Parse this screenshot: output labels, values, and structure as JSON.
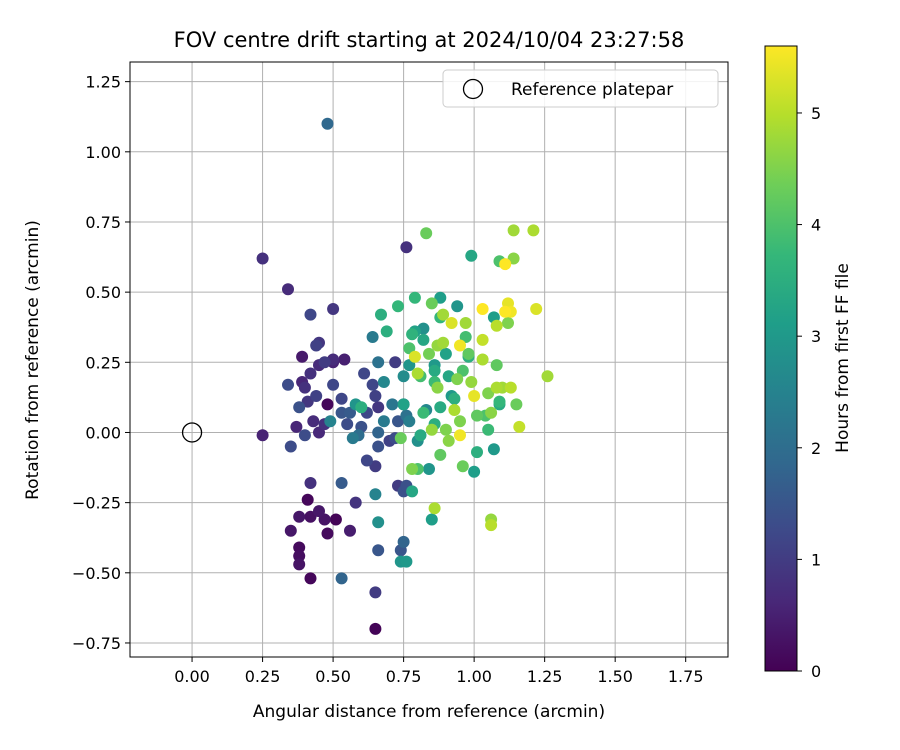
{
  "chart_data": {
    "type": "scatter",
    "title": "FOV centre drift starting at 2024/10/04 23:27:58",
    "xlabel": "Angular distance from reference (arcmin)",
    "ylabel": "Rotation from reference (arcmin)",
    "xlim": [
      -0.22,
      1.9
    ],
    "ylim": [
      -0.8,
      1.32
    ],
    "x_ticks": [
      0.0,
      0.25,
      0.5,
      0.75,
      1.0,
      1.25,
      1.5,
      1.75
    ],
    "y_ticks": [
      -0.75,
      -0.5,
      -0.25,
      0.0,
      0.25,
      0.5,
      0.75,
      1.0,
      1.25
    ],
    "grid": true,
    "legend": {
      "position": "top-right",
      "entries": [
        "Reference platepar"
      ]
    },
    "reference_point": {
      "x": 0.0,
      "y": 0.0,
      "label": "Reference platepar"
    },
    "colorbar": {
      "label": "Hours from first FF file",
      "colormap": "viridis",
      "range": [
        0,
        5.6
      ],
      "ticks": [
        0,
        1,
        2,
        3,
        4,
        5
      ]
    },
    "colormap_stops": [
      "#440154",
      "#482878",
      "#3e4989",
      "#31688e",
      "#26828e",
      "#1f9e89",
      "#35b779",
      "#6ece58",
      "#b5de2b",
      "#fde725"
    ],
    "points": [
      {
        "x": 0.65,
        "y": -0.7,
        "c": 0.05
      },
      {
        "x": 0.42,
        "y": -0.52,
        "c": 0.1
      },
      {
        "x": 0.38,
        "y": -0.47,
        "c": 0.3
      },
      {
        "x": 0.38,
        "y": -0.41,
        "c": 0.15
      },
      {
        "x": 0.38,
        "y": -0.44,
        "c": 0.2
      },
      {
        "x": 0.35,
        "y": -0.35,
        "c": 0.35
      },
      {
        "x": 0.38,
        "y": -0.3,
        "c": 0.35
      },
      {
        "x": 0.42,
        "y": -0.3,
        "c": 0.25
      },
      {
        "x": 0.41,
        "y": -0.24,
        "c": 0.1
      },
      {
        "x": 0.45,
        "y": -0.28,
        "c": 0.35
      },
      {
        "x": 0.47,
        "y": -0.31,
        "c": 0.3
      },
      {
        "x": 0.48,
        "y": -0.36,
        "c": 0.15
      },
      {
        "x": 0.51,
        "y": -0.31,
        "c": 0.05
      },
      {
        "x": 0.56,
        "y": -0.35,
        "c": 0.45
      },
      {
        "x": 0.42,
        "y": -0.18,
        "c": 0.8
      },
      {
        "x": 0.53,
        "y": -0.18,
        "c": 1.6
      },
      {
        "x": 0.53,
        "y": -0.52,
        "c": 1.8
      },
      {
        "x": 0.65,
        "y": -0.57,
        "c": 1.0
      },
      {
        "x": 0.58,
        "y": -0.25,
        "c": 0.85
      },
      {
        "x": 0.66,
        "y": -0.42,
        "c": 1.5
      },
      {
        "x": 0.25,
        "y": -0.01,
        "c": 0.55
      },
      {
        "x": 0.35,
        "y": -0.05,
        "c": 1.3
      },
      {
        "x": 0.37,
        "y": 0.02,
        "c": 0.6
      },
      {
        "x": 0.4,
        "y": -0.01,
        "c": 1.3
      },
      {
        "x": 0.43,
        "y": 0.04,
        "c": 0.7
      },
      {
        "x": 0.45,
        "y": 0.0,
        "c": 0.65
      },
      {
        "x": 0.47,
        "y": 0.03,
        "c": 0.8
      },
      {
        "x": 0.48,
        "y": 0.1,
        "c": 0.1
      },
      {
        "x": 0.38,
        "y": 0.09,
        "c": 1.4
      },
      {
        "x": 0.41,
        "y": 0.11,
        "c": 0.9
      },
      {
        "x": 0.44,
        "y": 0.13,
        "c": 1.1
      },
      {
        "x": 0.4,
        "y": 0.16,
        "c": 0.8
      },
      {
        "x": 0.39,
        "y": 0.18,
        "c": 0.6
      },
      {
        "x": 0.34,
        "y": 0.17,
        "c": 1.3
      },
      {
        "x": 0.42,
        "y": 0.21,
        "c": 0.8
      },
      {
        "x": 0.45,
        "y": 0.24,
        "c": 0.7
      },
      {
        "x": 0.39,
        "y": 0.27,
        "c": 0.4
      },
      {
        "x": 0.5,
        "y": 0.25,
        "c": 0.55
      },
      {
        "x": 0.5,
        "y": 0.17,
        "c": 1.2
      },
      {
        "x": 0.44,
        "y": 0.31,
        "c": 1.1
      },
      {
        "x": 0.45,
        "y": 0.32,
        "c": 0.9
      },
      {
        "x": 0.47,
        "y": 0.25,
        "c": 1.0
      },
      {
        "x": 0.5,
        "y": 0.26,
        "c": 0.7
      },
      {
        "x": 0.54,
        "y": 0.26,
        "c": 0.5
      },
      {
        "x": 0.42,
        "y": 0.42,
        "c": 1.2
      },
      {
        "x": 0.34,
        "y": 0.51,
        "c": 0.7
      },
      {
        "x": 0.25,
        "y": 0.62,
        "c": 0.8
      },
      {
        "x": 0.5,
        "y": 0.44,
        "c": 0.9
      },
      {
        "x": 0.48,
        "y": 1.1,
        "c": 1.9
      },
      {
        "x": 0.76,
        "y": 0.66,
        "c": 0.8
      },
      {
        "x": 0.49,
        "y": 0.04,
        "c": 2.5
      },
      {
        "x": 0.53,
        "y": 0.07,
        "c": 1.5
      },
      {
        "x": 0.55,
        "y": 0.03,
        "c": 1.3
      },
      {
        "x": 0.56,
        "y": 0.07,
        "c": 1.6
      },
      {
        "x": 0.53,
        "y": 0.12,
        "c": 1.2
      },
      {
        "x": 0.58,
        "y": 0.1,
        "c": 2.9
      },
      {
        "x": 0.6,
        "y": 0.09,
        "c": 3.5
      },
      {
        "x": 0.62,
        "y": 0.07,
        "c": 1.2
      },
      {
        "x": 0.57,
        "y": -0.02,
        "c": 2.3
      },
      {
        "x": 0.59,
        "y": -0.01,
        "c": 2.0
      },
      {
        "x": 0.6,
        "y": 0.02,
        "c": 1.4
      },
      {
        "x": 0.62,
        "y": -0.1,
        "c": 1.2
      },
      {
        "x": 0.65,
        "y": -0.12,
        "c": 1.0
      },
      {
        "x": 0.66,
        "y": -0.05,
        "c": 1.4
      },
      {
        "x": 0.66,
        "y": 0.0,
        "c": 1.8
      },
      {
        "x": 0.68,
        "y": 0.04,
        "c": 2.3
      },
      {
        "x": 0.7,
        "y": -0.03,
        "c": 1.1
      },
      {
        "x": 0.72,
        "y": -0.02,
        "c": 1.3
      },
      {
        "x": 0.61,
        "y": 0.21,
        "c": 1.2
      },
      {
        "x": 0.64,
        "y": 0.17,
        "c": 1.2
      },
      {
        "x": 0.65,
        "y": 0.13,
        "c": 1.1
      },
      {
        "x": 0.66,
        "y": 0.09,
        "c": 0.9
      },
      {
        "x": 0.64,
        "y": 0.34,
        "c": 2.3
      },
      {
        "x": 0.66,
        "y": 0.25,
        "c": 2.1
      },
      {
        "x": 0.67,
        "y": 0.42,
        "c": 3.5
      },
      {
        "x": 0.68,
        "y": 0.18,
        "c": 2.6
      },
      {
        "x": 0.72,
        "y": 0.25,
        "c": 1.0
      },
      {
        "x": 0.73,
        "y": 0.45,
        "c": 3.7
      },
      {
        "x": 0.73,
        "y": 0.04,
        "c": 1.5
      },
      {
        "x": 0.73,
        "y": -0.19,
        "c": 1.0
      },
      {
        "x": 0.75,
        "y": -0.21,
        "c": 1.4
      },
      {
        "x": 0.76,
        "y": -0.19,
        "c": 1.4
      },
      {
        "x": 0.78,
        "y": -0.21,
        "c": 3.3
      },
      {
        "x": 0.74,
        "y": -0.42,
        "c": 1.5
      },
      {
        "x": 0.75,
        "y": -0.39,
        "c": 1.8
      },
      {
        "x": 0.74,
        "y": -0.46,
        "c": 2.9
      },
      {
        "x": 0.76,
        "y": -0.46,
        "c": 3.0
      },
      {
        "x": 0.65,
        "y": -0.22,
        "c": 2.5
      },
      {
        "x": 0.66,
        "y": -0.32,
        "c": 2.8
      },
      {
        "x": 0.75,
        "y": 0.1,
        "c": 1.5
      },
      {
        "x": 0.76,
        "y": 0.06,
        "c": 2.1
      },
      {
        "x": 0.75,
        "y": 0.1,
        "c": 3.2
      },
      {
        "x": 0.74,
        "y": -0.02,
        "c": 4.3
      },
      {
        "x": 0.77,
        "y": 0.04,
        "c": 2.4
      },
      {
        "x": 0.75,
        "y": 0.2,
        "c": 2.7
      },
      {
        "x": 0.77,
        "y": 0.24,
        "c": 2.9
      },
      {
        "x": 0.78,
        "y": 0.35,
        "c": 3.6
      },
      {
        "x": 0.79,
        "y": 0.36,
        "c": 3.2
      },
      {
        "x": 0.79,
        "y": 0.48,
        "c": 3.7
      },
      {
        "x": 0.79,
        "y": 0.27,
        "c": 5.3
      },
      {
        "x": 0.8,
        "y": 0.21,
        "c": 4.9
      },
      {
        "x": 0.8,
        "y": -0.13,
        "c": 4.0
      },
      {
        "x": 0.8,
        "y": -0.03,
        "c": 2.8
      },
      {
        "x": 0.81,
        "y": -0.01,
        "c": 3.4
      },
      {
        "x": 0.82,
        "y": 0.07,
        "c": 3.8
      },
      {
        "x": 0.82,
        "y": 0.33,
        "c": 3.3
      },
      {
        "x": 0.82,
        "y": 0.37,
        "c": 2.8
      },
      {
        "x": 0.83,
        "y": 0.71,
        "c": 4.3
      },
      {
        "x": 0.84,
        "y": 0.28,
        "c": 4.4
      },
      {
        "x": 0.84,
        "y": -0.13,
        "c": 2.9
      },
      {
        "x": 0.85,
        "y": -0.31,
        "c": 3.1
      },
      {
        "x": 0.85,
        "y": 0.01,
        "c": 4.7
      },
      {
        "x": 0.86,
        "y": -0.27,
        "c": 4.9
      },
      {
        "x": 0.86,
        "y": 0.03,
        "c": 3.5
      },
      {
        "x": 0.86,
        "y": 0.18,
        "c": 3.8
      },
      {
        "x": 0.86,
        "y": 0.22,
        "c": 3.4
      },
      {
        "x": 0.86,
        "y": 0.24,
        "c": 3.0
      },
      {
        "x": 0.87,
        "y": 0.31,
        "c": 4.7
      },
      {
        "x": 0.87,
        "y": 0.16,
        "c": 4.6
      },
      {
        "x": 0.88,
        "y": 0.09,
        "c": 3.4
      },
      {
        "x": 0.88,
        "y": 0.41,
        "c": 3.7
      },
      {
        "x": 0.88,
        "y": 0.48,
        "c": 3.1
      },
      {
        "x": 0.88,
        "y": -0.08,
        "c": 4.2
      },
      {
        "x": 0.89,
        "y": 0.32,
        "c": 4.8
      },
      {
        "x": 0.9,
        "y": 0.28,
        "c": 3.2
      },
      {
        "x": 0.9,
        "y": 0.01,
        "c": 4.5
      },
      {
        "x": 0.91,
        "y": -0.03,
        "c": 4.6
      },
      {
        "x": 0.91,
        "y": 0.2,
        "c": 3.3
      },
      {
        "x": 0.92,
        "y": 0.13,
        "c": 3.0
      },
      {
        "x": 0.92,
        "y": 0.39,
        "c": 5.3
      },
      {
        "x": 0.93,
        "y": 0.12,
        "c": 3.5
      },
      {
        "x": 0.93,
        "y": 0.08,
        "c": 4.9
      },
      {
        "x": 0.94,
        "y": 0.45,
        "c": 2.9
      },
      {
        "x": 0.94,
        "y": 0.19,
        "c": 4.5
      },
      {
        "x": 0.95,
        "y": 0.31,
        "c": 5.5
      },
      {
        "x": 0.95,
        "y": 0.04,
        "c": 4.5
      },
      {
        "x": 0.95,
        "y": -0.01,
        "c": 5.5
      },
      {
        "x": 0.96,
        "y": -0.12,
        "c": 4.3
      },
      {
        "x": 0.96,
        "y": 0.22,
        "c": 4.0
      },
      {
        "x": 0.97,
        "y": 0.39,
        "c": 4.8
      },
      {
        "x": 0.97,
        "y": 0.34,
        "c": 3.9
      },
      {
        "x": 0.98,
        "y": 0.28,
        "c": 4.2
      },
      {
        "x": 0.98,
        "y": 0.27,
        "c": 3.5
      },
      {
        "x": 0.99,
        "y": 0.18,
        "c": 4.7
      },
      {
        "x": 0.99,
        "y": 0.63,
        "c": 3.3
      },
      {
        "x": 1.0,
        "y": -0.14,
        "c": 3.1
      },
      {
        "x": 1.0,
        "y": 0.13,
        "c": 5.4
      },
      {
        "x": 1.01,
        "y": 0.06,
        "c": 4.2
      },
      {
        "x": 1.01,
        "y": -0.07,
        "c": 3.5
      },
      {
        "x": 1.03,
        "y": 0.44,
        "c": 5.6
      },
      {
        "x": 1.03,
        "y": 0.33,
        "c": 5.1
      },
      {
        "x": 1.03,
        "y": 0.26,
        "c": 4.9
      },
      {
        "x": 1.04,
        "y": 0.06,
        "c": 4.0
      },
      {
        "x": 1.05,
        "y": 0.01,
        "c": 3.8
      },
      {
        "x": 1.05,
        "y": 0.14,
        "c": 4.5
      },
      {
        "x": 1.06,
        "y": -0.31,
        "c": 4.7
      },
      {
        "x": 1.06,
        "y": -0.33,
        "c": 5.0
      },
      {
        "x": 1.06,
        "y": 0.07,
        "c": 4.6
      },
      {
        "x": 1.07,
        "y": -0.06,
        "c": 3.0
      },
      {
        "x": 1.07,
        "y": 0.41,
        "c": 3.1
      },
      {
        "x": 1.08,
        "y": 0.38,
        "c": 5.0
      },
      {
        "x": 1.08,
        "y": 0.24,
        "c": 4.2
      },
      {
        "x": 1.08,
        "y": 0.16,
        "c": 4.9
      },
      {
        "x": 1.09,
        "y": 0.1,
        "c": 3.4
      },
      {
        "x": 1.09,
        "y": 0.11,
        "c": 3.7
      },
      {
        "x": 1.09,
        "y": 0.61,
        "c": 4.0
      },
      {
        "x": 1.1,
        "y": 0.16,
        "c": 4.8
      },
      {
        "x": 1.11,
        "y": 0.43,
        "c": 5.6
      },
      {
        "x": 1.11,
        "y": 0.6,
        "c": 5.6
      },
      {
        "x": 1.12,
        "y": 0.39,
        "c": 4.5
      },
      {
        "x": 1.12,
        "y": 0.46,
        "c": 5.4
      },
      {
        "x": 1.13,
        "y": 0.43,
        "c": 5.5
      },
      {
        "x": 1.13,
        "y": 0.16,
        "c": 5.0
      },
      {
        "x": 1.14,
        "y": 0.72,
        "c": 4.8
      },
      {
        "x": 1.14,
        "y": 0.62,
        "c": 4.6
      },
      {
        "x": 1.15,
        "y": 0.1,
        "c": 4.3
      },
      {
        "x": 1.16,
        "y": 0.02,
        "c": 5.1
      },
      {
        "x": 1.21,
        "y": 0.72,
        "c": 4.9
      },
      {
        "x": 1.22,
        "y": 0.44,
        "c": 5.3
      },
      {
        "x": 1.26,
        "y": 0.2,
        "c": 4.8
      },
      {
        "x": 0.69,
        "y": 0.36,
        "c": 3.5
      },
      {
        "x": 0.81,
        "y": 0.2,
        "c": 3.9
      },
      {
        "x": 0.78,
        "y": -0.13,
        "c": 4.5
      },
      {
        "x": 0.83,
        "y": 0.08,
        "c": 2.6
      },
      {
        "x": 0.71,
        "y": 0.1,
        "c": 2.2
      },
      {
        "x": 0.77,
        "y": 0.3,
        "c": 4.0
      },
      {
        "x": 0.85,
        "y": 0.46,
        "c": 4.3
      },
      {
        "x": 0.89,
        "y": 0.42,
        "c": 4.8
      }
    ]
  }
}
